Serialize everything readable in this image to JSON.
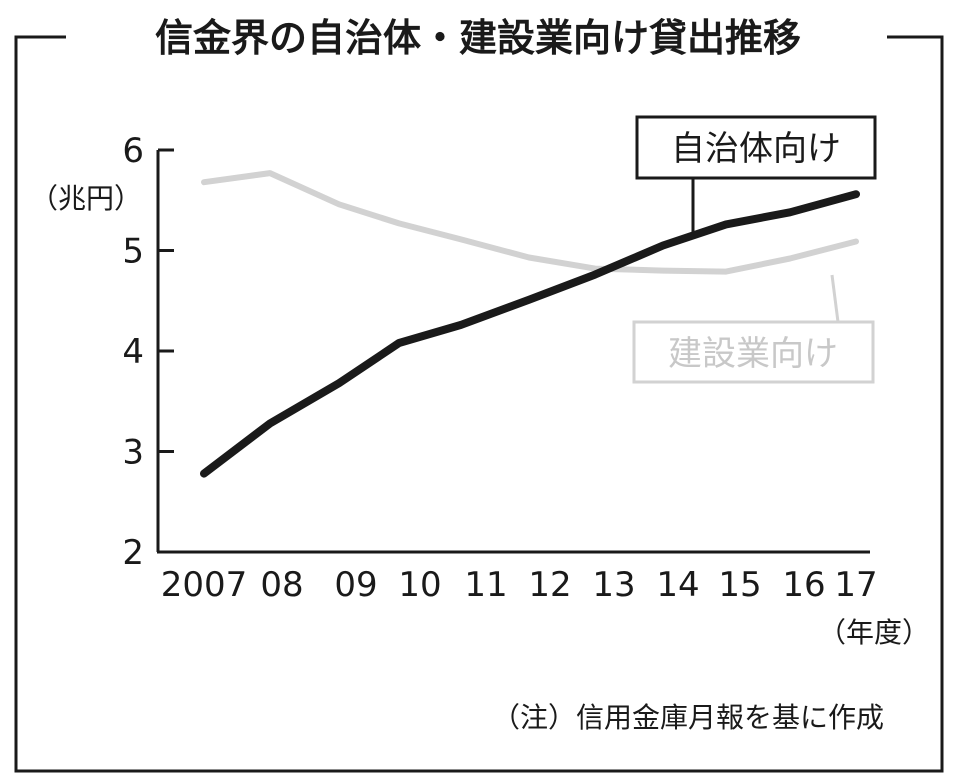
{
  "chart_data": {
    "type": "line",
    "title": "信金界の自治体・建設業向け貸出推移",
    "ylabel": "（兆円）",
    "xunit": "（年度）",
    "note": "（注）信用金庫月報を基に作成",
    "categories": [
      "2007",
      "08",
      "09",
      "10",
      "11",
      "12",
      "13",
      "14",
      "15",
      "16",
      "17"
    ],
    "ylim": [
      2,
      6
    ],
    "yticks": [
      "2",
      "3",
      "4",
      "5",
      "6"
    ],
    "series": [
      {
        "name": "自治体向け",
        "color": "#1a1a1a",
        "values": [
          2.78,
          3.28,
          3.68,
          4.08,
          4.26,
          4.51,
          4.76,
          5.05,
          5.26,
          5.38,
          5.56
        ]
      },
      {
        "name": "建設業向け",
        "color": "#d2d2d2",
        "values": [
          5.68,
          5.77,
          5.46,
          5.27,
          5.11,
          4.93,
          4.82,
          4.8,
          4.79,
          4.92,
          5.09
        ]
      }
    ]
  }
}
